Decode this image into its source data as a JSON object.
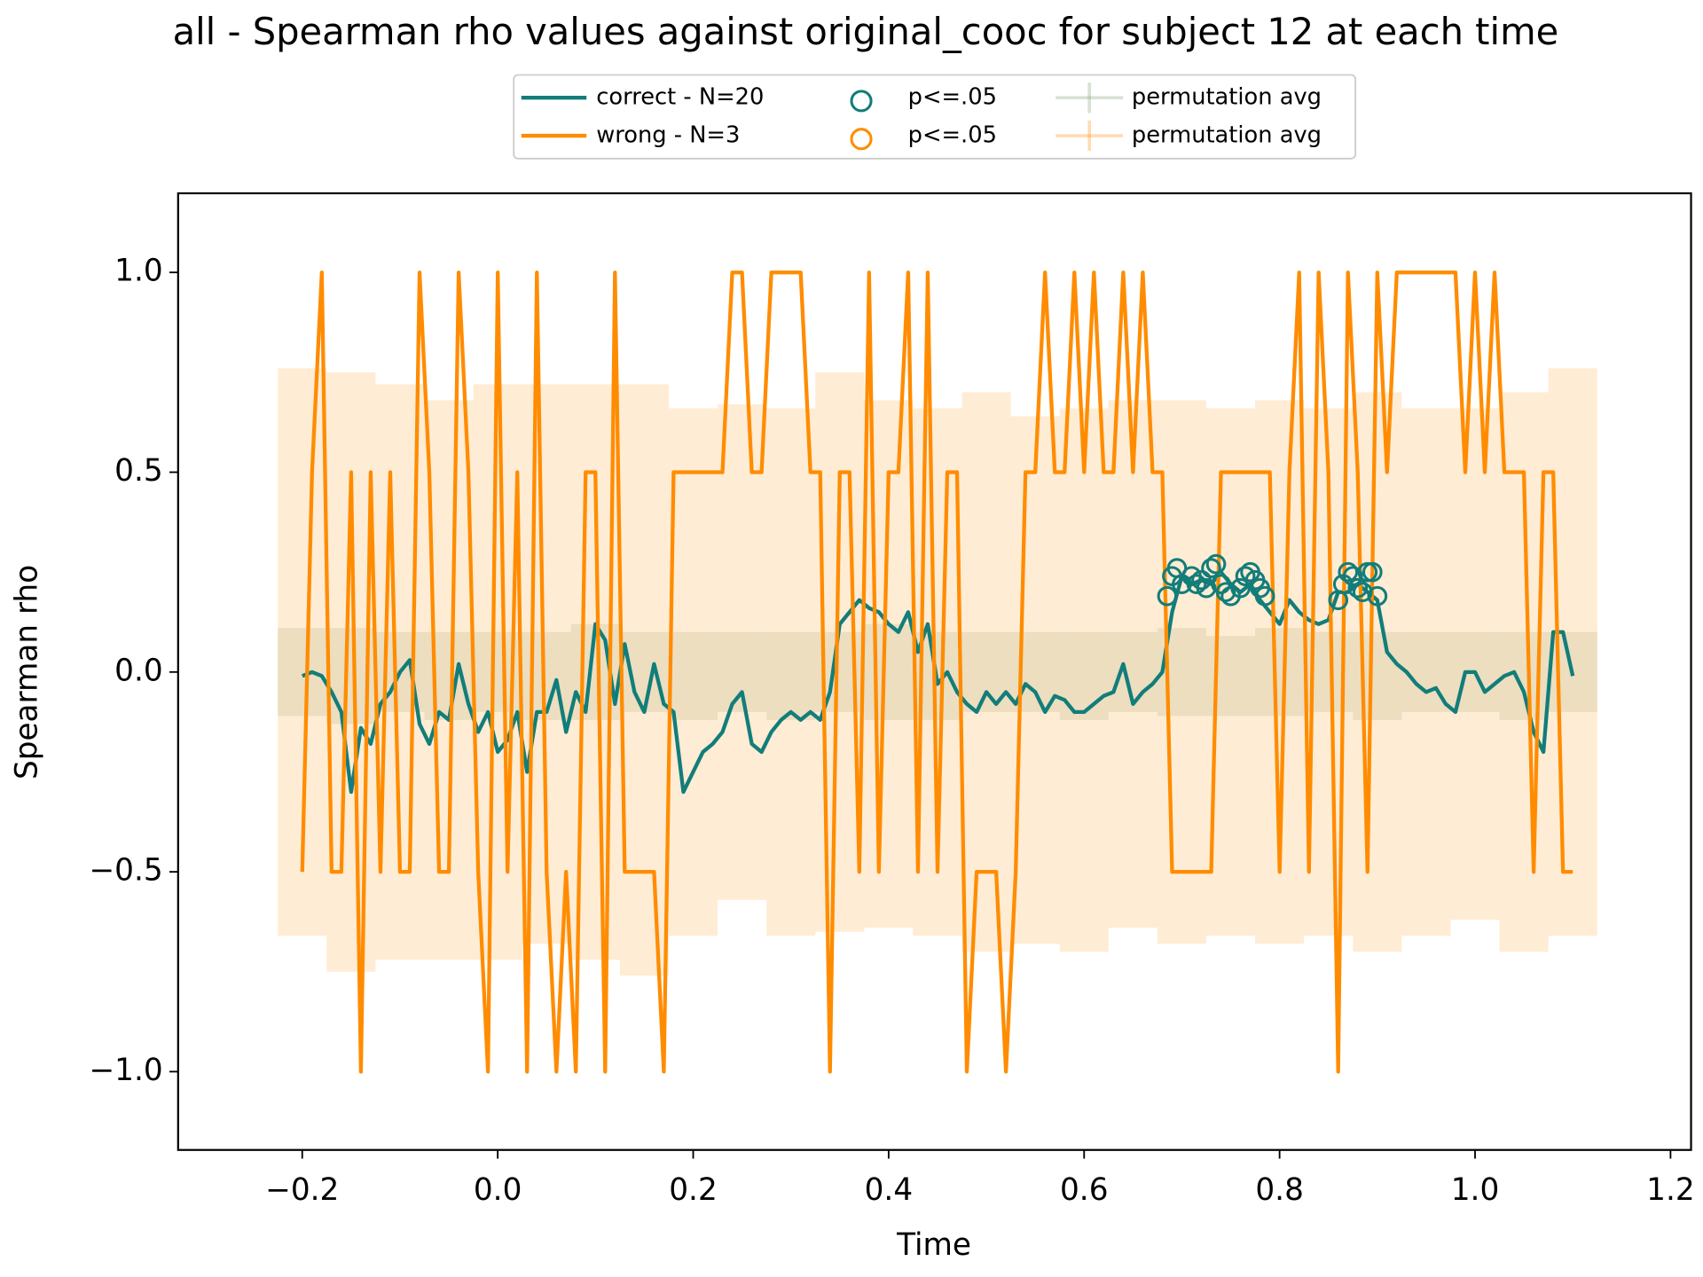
{
  "chart_data": {
    "type": "line",
    "title": "all - Spearman rho values against original_cooc for subject 12 at each time",
    "x_label": "Time",
    "y_label": "Spearman rho",
    "xlim": [
      -0.327,
      1.221
    ],
    "ylim": [
      -1.196,
      1.198
    ],
    "xticks": [
      {
        "value": -0.2,
        "label": "−0.2"
      },
      {
        "value": 0,
        "label": "0.0"
      },
      0.2,
      0.4,
      0.6,
      0.8,
      {
        "value": 1,
        "label": "1.0"
      },
      1.2
    ],
    "yticks": [
      {
        "value": -1,
        "label": "−1.0"
      },
      {
        "value": -0.5,
        "label": "−0.5"
      },
      {
        "value": 0,
        "label": "0.0"
      },
      0.5,
      {
        "value": 1,
        "label": "1.0"
      }
    ],
    "legend": "upper center",
    "x": [
      -0.2,
      -0.19,
      -0.18,
      -0.17,
      -0.16,
      -0.15,
      -0.14,
      -0.13,
      -0.12,
      -0.11,
      -0.1,
      -0.09,
      -0.08,
      -0.07,
      -0.06,
      -0.05,
      -0.04,
      -0.03,
      -0.02,
      -0.01,
      0,
      0.01,
      0.02,
      0.03,
      0.04,
      0.05,
      0.06,
      0.07,
      0.08,
      0.09,
      0.1,
      0.11,
      0.12,
      0.13,
      0.14,
      0.15,
      0.16,
      0.17,
      0.18,
      0.19,
      0.2,
      0.21,
      0.22,
      0.23,
      0.24,
      0.25,
      0.26,
      0.27,
      0.28,
      0.29,
      0.3,
      0.31,
      0.32,
      0.33,
      0.34,
      0.35,
      0.36,
      0.37,
      0.38,
      0.39,
      0.4,
      0.41,
      0.42,
      0.43,
      0.44,
      0.45,
      0.46,
      0.47,
      0.48,
      0.49,
      0.5,
      0.51,
      0.52,
      0.53,
      0.54,
      0.55,
      0.56,
      0.57,
      0.58,
      0.59,
      0.6,
      0.61,
      0.62,
      0.63,
      0.64,
      0.65,
      0.66,
      0.67,
      0.68,
      0.69,
      0.7,
      0.71,
      0.72,
      0.73,
      0.74,
      0.75,
      0.76,
      0.77,
      0.78,
      0.79,
      0.8,
      0.81,
      0.82,
      0.83,
      0.84,
      0.85,
      0.86,
      0.87,
      0.88,
      0.89,
      0.9,
      0.91,
      0.92,
      0.93,
      0.94,
      0.95,
      0.96,
      0.97,
      0.98,
      0.99,
      1,
      1.01,
      1.02,
      1.03,
      1.04,
      1.05,
      1.06,
      1.07,
      1.08,
      1.09,
      1.1
    ],
    "series": [
      {
        "type": "line",
        "name": "correct - N=20",
        "color": "#127d7a",
        "values": [
          -0.01,
          0,
          -0.01,
          -0.05,
          -0.1,
          -0.3,
          -0.14,
          -0.18,
          -0.08,
          -0.05,
          0,
          0.03,
          -0.13,
          -0.18,
          -0.1,
          -0.12,
          0.02,
          -0.08,
          -0.15,
          -0.1,
          -0.2,
          -0.17,
          -0.1,
          -0.25,
          -0.1,
          -0.1,
          -0.02,
          -0.15,
          -0.05,
          -0.1,
          0.12,
          0.08,
          -0.08,
          0.07,
          -0.05,
          -0.1,
          0.02,
          -0.08,
          -0.1,
          -0.3,
          -0.25,
          -0.2,
          -0.18,
          -0.15,
          -0.08,
          -0.05,
          -0.18,
          -0.2,
          -0.15,
          -0.12,
          -0.1,
          -0.12,
          -0.1,
          -0.12,
          -0.05,
          0.12,
          0.15,
          0.18,
          0.16,
          0.15,
          0.12,
          0.1,
          0.15,
          0.05,
          0.12,
          -0.03,
          0,
          -0.05,
          -0.08,
          -0.1,
          -0.05,
          -0.08,
          -0.05,
          -0.08,
          -0.03,
          -0.05,
          -0.1,
          -0.06,
          -0.07,
          -0.1,
          -0.1,
          -0.08,
          -0.06,
          -0.05,
          0.02,
          -0.08,
          -0.05,
          -0.03,
          0,
          0.15,
          0.24,
          0.22,
          0.23,
          0.22,
          0.25,
          0.22,
          0.2,
          0.22,
          0.18,
          0.15,
          0.12,
          0.18,
          0.15,
          0.13,
          0.12,
          0.13,
          0.2,
          0.2,
          0.22,
          0.2,
          0.18,
          0.05,
          0.02,
          0,
          -0.03,
          -0.05,
          -0.04,
          -0.08,
          -0.1,
          0,
          0,
          -0.05,
          -0.03,
          -0.01,
          0,
          -0.05,
          -0.15,
          -0.2,
          0.1,
          0.1,
          -0.01
        ]
      },
      {
        "type": "line",
        "name": "wrong - N=3",
        "color": "#ff8c00",
        "values": [
          -0.5,
          0.5,
          1,
          -0.5,
          -0.5,
          0.5,
          -1,
          0.5,
          -0.5,
          0.5,
          -0.5,
          -0.5,
          1,
          0.5,
          -0.5,
          -0.5,
          1,
          0.5,
          -0.5,
          -1,
          1,
          -0.5,
          0.5,
          -1,
          1,
          -0.5,
          -1,
          -0.5,
          -1,
          0.5,
          0.5,
          -1,
          1,
          -0.5,
          -0.5,
          -0.5,
          -0.5,
          -1,
          0.5,
          0.5,
          0.5,
          0.5,
          0.5,
          0.5,
          1,
          1,
          0.5,
          0.5,
          1,
          1,
          1,
          1,
          0.5,
          0.5,
          -1,
          0.5,
          0.5,
          -0.5,
          1,
          -0.5,
          0.5,
          0.5,
          1,
          -0.5,
          1,
          -0.5,
          0.5,
          0.5,
          -1,
          -0.5,
          -0.5,
          -0.5,
          -1,
          -0.5,
          0.5,
          0.5,
          1,
          0.5,
          0.5,
          1,
          0.5,
          1,
          0.5,
          0.5,
          1,
          0.5,
          1,
          0.5,
          0.5,
          -0.5,
          -0.5,
          -0.5,
          -0.5,
          -0.5,
          0.5,
          0.5,
          0.5,
          0.5,
          0.5,
          0.5,
          -0.5,
          0.5,
          1,
          -0.5,
          1,
          0.5,
          -1,
          1,
          0.5,
          -0.5,
          1,
          0.5,
          1,
          1,
          1,
          1,
          1,
          1,
          1,
          0.5,
          1,
          0.5,
          1,
          0.5,
          0.5,
          0.5,
          -0.5,
          0.5,
          0.5,
          -0.5,
          -0.5
        ]
      },
      {
        "type": "scatter",
        "name": "p<=.05",
        "color": "#127d7a",
        "x": [
          0.685,
          0.69,
          0.695,
          0.7,
          0.71,
          0.715,
          0.72,
          0.725,
          0.73,
          0.735,
          0.74,
          0.745,
          0.75,
          0.76,
          0.765,
          0.77,
          0.775,
          0.78,
          0.785,
          0.86,
          0.865,
          0.87,
          0.875,
          0.88,
          0.885,
          0.89,
          0.895,
          0.9
        ],
        "y": [
          0.19,
          0.24,
          0.26,
          0.22,
          0.24,
          0.22,
          0.23,
          0.21,
          0.26,
          0.27,
          0.22,
          0.2,
          0.19,
          0.21,
          0.24,
          0.25,
          0.23,
          0.21,
          0.19,
          0.18,
          0.22,
          0.25,
          0.24,
          0.21,
          0.2,
          0.25,
          0.25,
          0.19
        ]
      },
      {
        "type": "scatter",
        "name": "p<=.05",
        "color": "#ff8c00",
        "x": [],
        "y": []
      },
      {
        "type": "errorbar",
        "name": "permutation avg",
        "color": "#7fa06a",
        "x": [
          -0.2,
          -0.15,
          -0.1,
          -0.05,
          0,
          0.05,
          0.1,
          0.15,
          0.2,
          0.25,
          0.3,
          0.35,
          0.4,
          0.45,
          0.5,
          0.55,
          0.6,
          0.65,
          0.7,
          0.75,
          0.8,
          0.85,
          0.9,
          0.95,
          1,
          1.05,
          1.1
        ],
        "values": [
          0,
          -0.01,
          0,
          -0.01,
          0,
          -0.01,
          0,
          0,
          -0.01,
          0,
          -0.01,
          0,
          0,
          -0.01,
          0,
          0,
          -0.01,
          0,
          0,
          -0.01,
          0,
          0,
          -0.01,
          0,
          0,
          -0.01,
          0
        ],
        "errors": [
          0.11,
          0.12,
          0.1,
          0.11,
          0.1,
          0.11,
          0.12,
          0.1,
          0.11,
          0.1,
          0.11,
          0.1,
          0.12,
          0.11,
          0.1,
          0.1,
          0.11,
          0.1,
          0.11,
          0.1,
          0.11,
          0.1,
          0.11,
          0.1,
          0.1,
          0.11,
          0.1
        ]
      },
      {
        "type": "errorbar",
        "name": "permutation avg",
        "color": "#ff8c00",
        "x": [
          -0.2,
          -0.15,
          -0.1,
          -0.05,
          0,
          0.05,
          0.1,
          0.15,
          0.2,
          0.25,
          0.3,
          0.35,
          0.4,
          0.45,
          0.5,
          0.55,
          0.6,
          0.65,
          0.7,
          0.75,
          0.8,
          0.85,
          0.9,
          0.95,
          1,
          1.05,
          1.1
        ],
        "values": [
          0.05,
          0,
          0,
          -0.02,
          0,
          0.02,
          0,
          -0.02,
          0,
          0.05,
          0,
          0.05,
          0.02,
          0,
          0,
          -0.02,
          -0.02,
          0.02,
          0,
          0,
          0,
          0,
          0,
          0,
          0.02,
          0,
          0.05
        ],
        "errors": [
          0.71,
          0.75,
          0.72,
          0.7,
          0.72,
          0.7,
          0.72,
          0.74,
          0.66,
          0.62,
          0.66,
          0.7,
          0.66,
          0.66,
          0.7,
          0.66,
          0.68,
          0.66,
          0.68,
          0.66,
          0.68,
          0.66,
          0.7,
          0.66,
          0.64,
          0.7,
          0.71
        ]
      }
    ]
  }
}
